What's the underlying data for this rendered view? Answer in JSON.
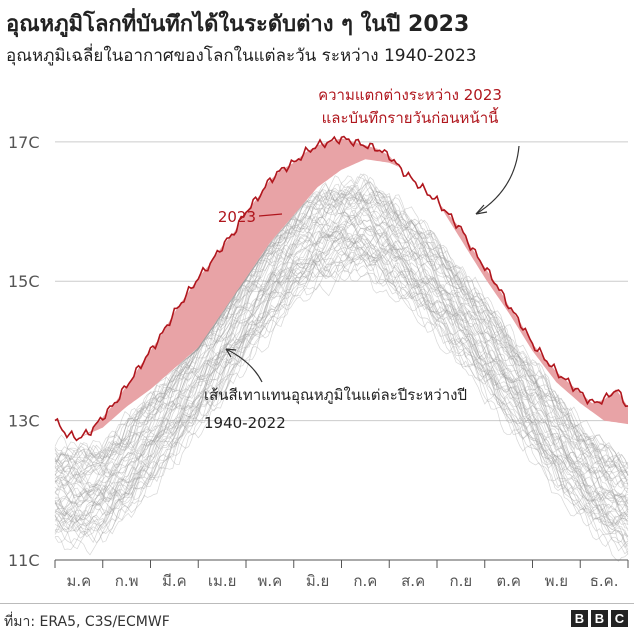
{
  "header": {
    "title": "อุณหภูมิโลกที่บันทึกได้ในระดับต่าง ๆ ในปี 2023",
    "subtitle": "อุณหภูมิเฉลี่ยในอากาศของโลกในแต่ละวัน ระหว่าง 1940-2023"
  },
  "footer": {
    "source": "ที่มา: ERA5, C3S/ECMWF",
    "logo_letters": [
      "B",
      "B",
      "C"
    ]
  },
  "colors": {
    "series_2023": "#b0161d",
    "difference_fill": "#e8a3a6",
    "historical_lines": "#9a9a9a",
    "grid": "#cccccc",
    "axis_text": "#555555"
  },
  "chart_data": {
    "type": "line",
    "title": "อุณหภูมิโลกที่บันทึกได้ในระดับต่าง ๆ ในปี 2023",
    "ylabel": "",
    "xlabel": "",
    "ylim": [
      11,
      17.6
    ],
    "yticks": [
      11,
      13,
      15,
      17
    ],
    "ytick_labels": [
      "11C",
      "13C",
      "15C",
      "17C"
    ],
    "grid": true,
    "x_unit": "month",
    "xlim": [
      0,
      12
    ],
    "categories": [
      "ม.ค",
      "ก.พ",
      "มี.ค",
      "เม.ย",
      "พ.ค",
      "มิ.ย",
      "ก.ค",
      "ส.ค",
      "ก.ย",
      "ต.ค",
      "พ.ย",
      "ธ.ค."
    ],
    "series": [
      {
        "name": "2023",
        "x": [
          0.0,
          0.25,
          0.5,
          0.75,
          1.0,
          1.25,
          1.5,
          1.75,
          2.0,
          2.25,
          2.5,
          2.75,
          3.0,
          3.25,
          3.5,
          3.75,
          4.0,
          4.25,
          4.5,
          4.75,
          5.0,
          5.25,
          5.5,
          5.75,
          6.0,
          6.25,
          6.5,
          6.75,
          7.0,
          7.25,
          7.5,
          7.75,
          8.0,
          8.25,
          8.5,
          8.75,
          9.0,
          9.25,
          9.5,
          9.75,
          10.0,
          10.25,
          10.5,
          10.75,
          11.0,
          11.25,
          11.5,
          11.75,
          12.0
        ],
        "values": [
          13.0,
          12.8,
          12.75,
          12.85,
          13.05,
          13.25,
          13.5,
          13.75,
          14.0,
          14.25,
          14.55,
          14.8,
          15.05,
          15.25,
          15.5,
          15.7,
          16.0,
          16.2,
          16.45,
          16.6,
          16.7,
          16.85,
          16.95,
          17.0,
          17.05,
          17.0,
          16.95,
          16.9,
          16.8,
          16.6,
          16.45,
          16.3,
          16.15,
          15.95,
          15.75,
          15.45,
          15.2,
          14.95,
          14.65,
          14.4,
          14.1,
          13.9,
          13.7,
          13.55,
          13.4,
          13.25,
          13.3,
          13.45,
          13.2
        ]
      },
      {
        "name": "เส้นสีเทาแทนอุณหภูมิในแต่ละปีระหว่างปี 1940-2022",
        "x": [
          0.0,
          0.5,
          1.0,
          1.5,
          2.0,
          2.5,
          3.0,
          3.5,
          4.0,
          4.5,
          5.0,
          5.5,
          6.0,
          6.5,
          7.0,
          7.5,
          8.0,
          8.5,
          9.0,
          9.5,
          10.0,
          10.5,
          11.0,
          11.5,
          12.0
        ],
        "values": [
          12.0,
          11.95,
          12.05,
          12.35,
          12.75,
          13.15,
          13.6,
          14.05,
          14.55,
          15.0,
          15.4,
          15.65,
          15.8,
          15.8,
          15.6,
          15.3,
          14.95,
          14.55,
          14.1,
          13.65,
          13.2,
          12.75,
          12.35,
          12.0,
          11.8
        ]
      }
    ],
    "historical_range": {
      "years": [
        1940,
        2022
      ],
      "record_before_2023_values": [
        13.2,
        12.75,
        12.9,
        13.2,
        13.45,
        13.75,
        14.05,
        14.55,
        15.05,
        15.55,
        15.95,
        16.35,
        16.6,
        16.75,
        16.7,
        16.55,
        16.15,
        15.6,
        15.05,
        14.55,
        14.0,
        13.55,
        13.25,
        13.0,
        12.95
      ]
    },
    "annotations": {
      "difference": "ความแตกต่างระหว่าง 2023 และบันทึกรายวันก่อนหน้านี้",
      "series_2023": "2023",
      "historical": "เส้นสีเทาแทนอุณหภูมิในแต่ละปีระหว่างปี 1940-2022"
    }
  }
}
